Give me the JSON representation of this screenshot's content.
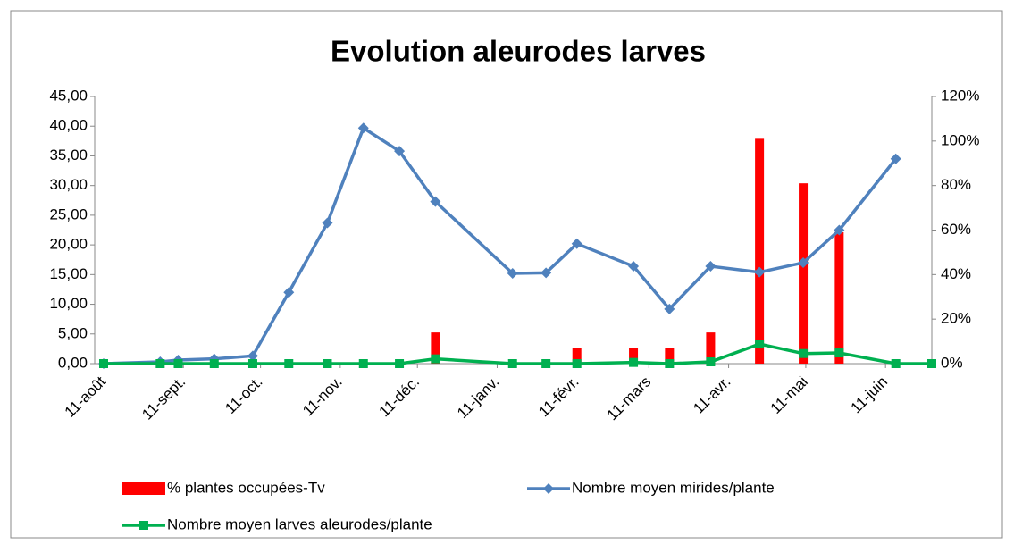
{
  "chart_data": {
    "type": "line",
    "title": "Evolution aleurodes larves",
    "x": [
      0,
      22,
      29,
      43,
      58,
      72,
      87,
      101,
      115,
      129,
      159,
      172,
      184,
      206,
      220,
      236,
      255,
      272,
      286,
      308,
      322
    ],
    "xlim": [
      0,
      322
    ],
    "xticks": [
      {
        "value": 0,
        "label": "11-août"
      },
      {
        "value": 31,
        "label": "11-sept."
      },
      {
        "value": 61,
        "label": "11-oct."
      },
      {
        "value": 92,
        "label": "11-nov."
      },
      {
        "value": 122,
        "label": "11-déc."
      },
      {
        "value": 153,
        "label": "11-janv."
      },
      {
        "value": 184,
        "label": "11-févr."
      },
      {
        "value": 212,
        "label": "11-mars"
      },
      {
        "value": 243,
        "label": "11-avr."
      },
      {
        "value": 273,
        "label": "11-mai"
      },
      {
        "value": 304,
        "label": "11-juin"
      }
    ],
    "ylim": [
      0,
      45
    ],
    "yticks": [
      {
        "value": 0,
        "label": "0,00"
      },
      {
        "value": 5,
        "label": "5,00"
      },
      {
        "value": 10,
        "label": "10,00"
      },
      {
        "value": 15,
        "label": "15,00"
      },
      {
        "value": 20,
        "label": "20,00"
      },
      {
        "value": 25,
        "label": "25,00"
      },
      {
        "value": 30,
        "label": "30,00"
      },
      {
        "value": 35,
        "label": "35,00"
      },
      {
        "value": 40,
        "label": "40,00"
      },
      {
        "value": 45,
        "label": "45,00"
      }
    ],
    "y2lim": [
      0,
      120
    ],
    "y2ticks": [
      {
        "value": 0,
        "label": "0%"
      },
      {
        "value": 20,
        "label": "20%"
      },
      {
        "value": 40,
        "label": "40%"
      },
      {
        "value": 60,
        "label": "60%"
      },
      {
        "value": 80,
        "label": "80%"
      },
      {
        "value": 100,
        "label": "100%"
      },
      {
        "value": 120,
        "label": "120%"
      }
    ],
    "series": [
      {
        "name": "% plantes occupées-Tv",
        "color": "#ff0000",
        "type": "bar",
        "axis": "y2",
        "values": [
          0,
          0,
          0,
          0,
          0,
          0,
          0,
          0,
          0,
          14,
          0,
          0,
          7,
          7,
          7,
          14,
          101,
          81,
          59,
          0,
          0
        ]
      },
      {
        "name": "Nombre moyen mirides/plante",
        "color": "#4f81bd",
        "type": "line",
        "marker": "diamond",
        "values": [
          0,
          0.3,
          0.6,
          0.8,
          1.3,
          12,
          23.7,
          39.7,
          35.8,
          27.3,
          15.2,
          15.3,
          20.2,
          16.4,
          9.2,
          16.4,
          15.4,
          17,
          22.5,
          34.5,
          null
        ]
      },
      {
        "name": "Nombre moyen larves aleurodes/plante",
        "color": "#00b050",
        "type": "line",
        "marker": "square",
        "values": [
          0,
          0,
          0,
          0,
          0,
          0,
          0,
          0,
          0,
          0.8,
          0,
          0,
          0,
          0.2,
          0,
          0.3,
          3.3,
          1.7,
          1.8,
          0,
          0
        ]
      }
    ]
  }
}
